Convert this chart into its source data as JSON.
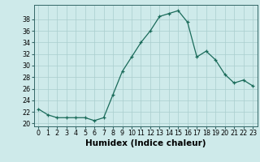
{
  "x": [
    0,
    1,
    2,
    3,
    4,
    5,
    6,
    7,
    8,
    9,
    10,
    11,
    12,
    13,
    14,
    15,
    16,
    17,
    18,
    19,
    20,
    21,
    22,
    23
  ],
  "y": [
    22.5,
    21.5,
    21.0,
    21.0,
    21.0,
    21.0,
    20.5,
    21.0,
    25.0,
    29.0,
    31.5,
    34.0,
    36.0,
    38.5,
    39.0,
    39.5,
    37.5,
    31.5,
    32.5,
    31.0,
    28.5,
    27.0,
    27.5,
    26.5
  ],
  "xlabel": "Humidex (Indice chaleur)",
  "ylim": [
    19.5,
    40.5
  ],
  "xlim": [
    -0.5,
    23.5
  ],
  "yticks": [
    20,
    22,
    24,
    26,
    28,
    30,
    32,
    34,
    36,
    38
  ],
  "xticks": [
    0,
    1,
    2,
    3,
    4,
    5,
    6,
    7,
    8,
    9,
    10,
    11,
    12,
    13,
    14,
    15,
    16,
    17,
    18,
    19,
    20,
    21,
    22,
    23
  ],
  "line_color": "#1a6b5a",
  "marker": "+",
  "bg_color": "#ceeaea",
  "grid_color": "#aacece",
  "tick_label_fontsize": 5.8,
  "xlabel_fontsize": 7.5
}
